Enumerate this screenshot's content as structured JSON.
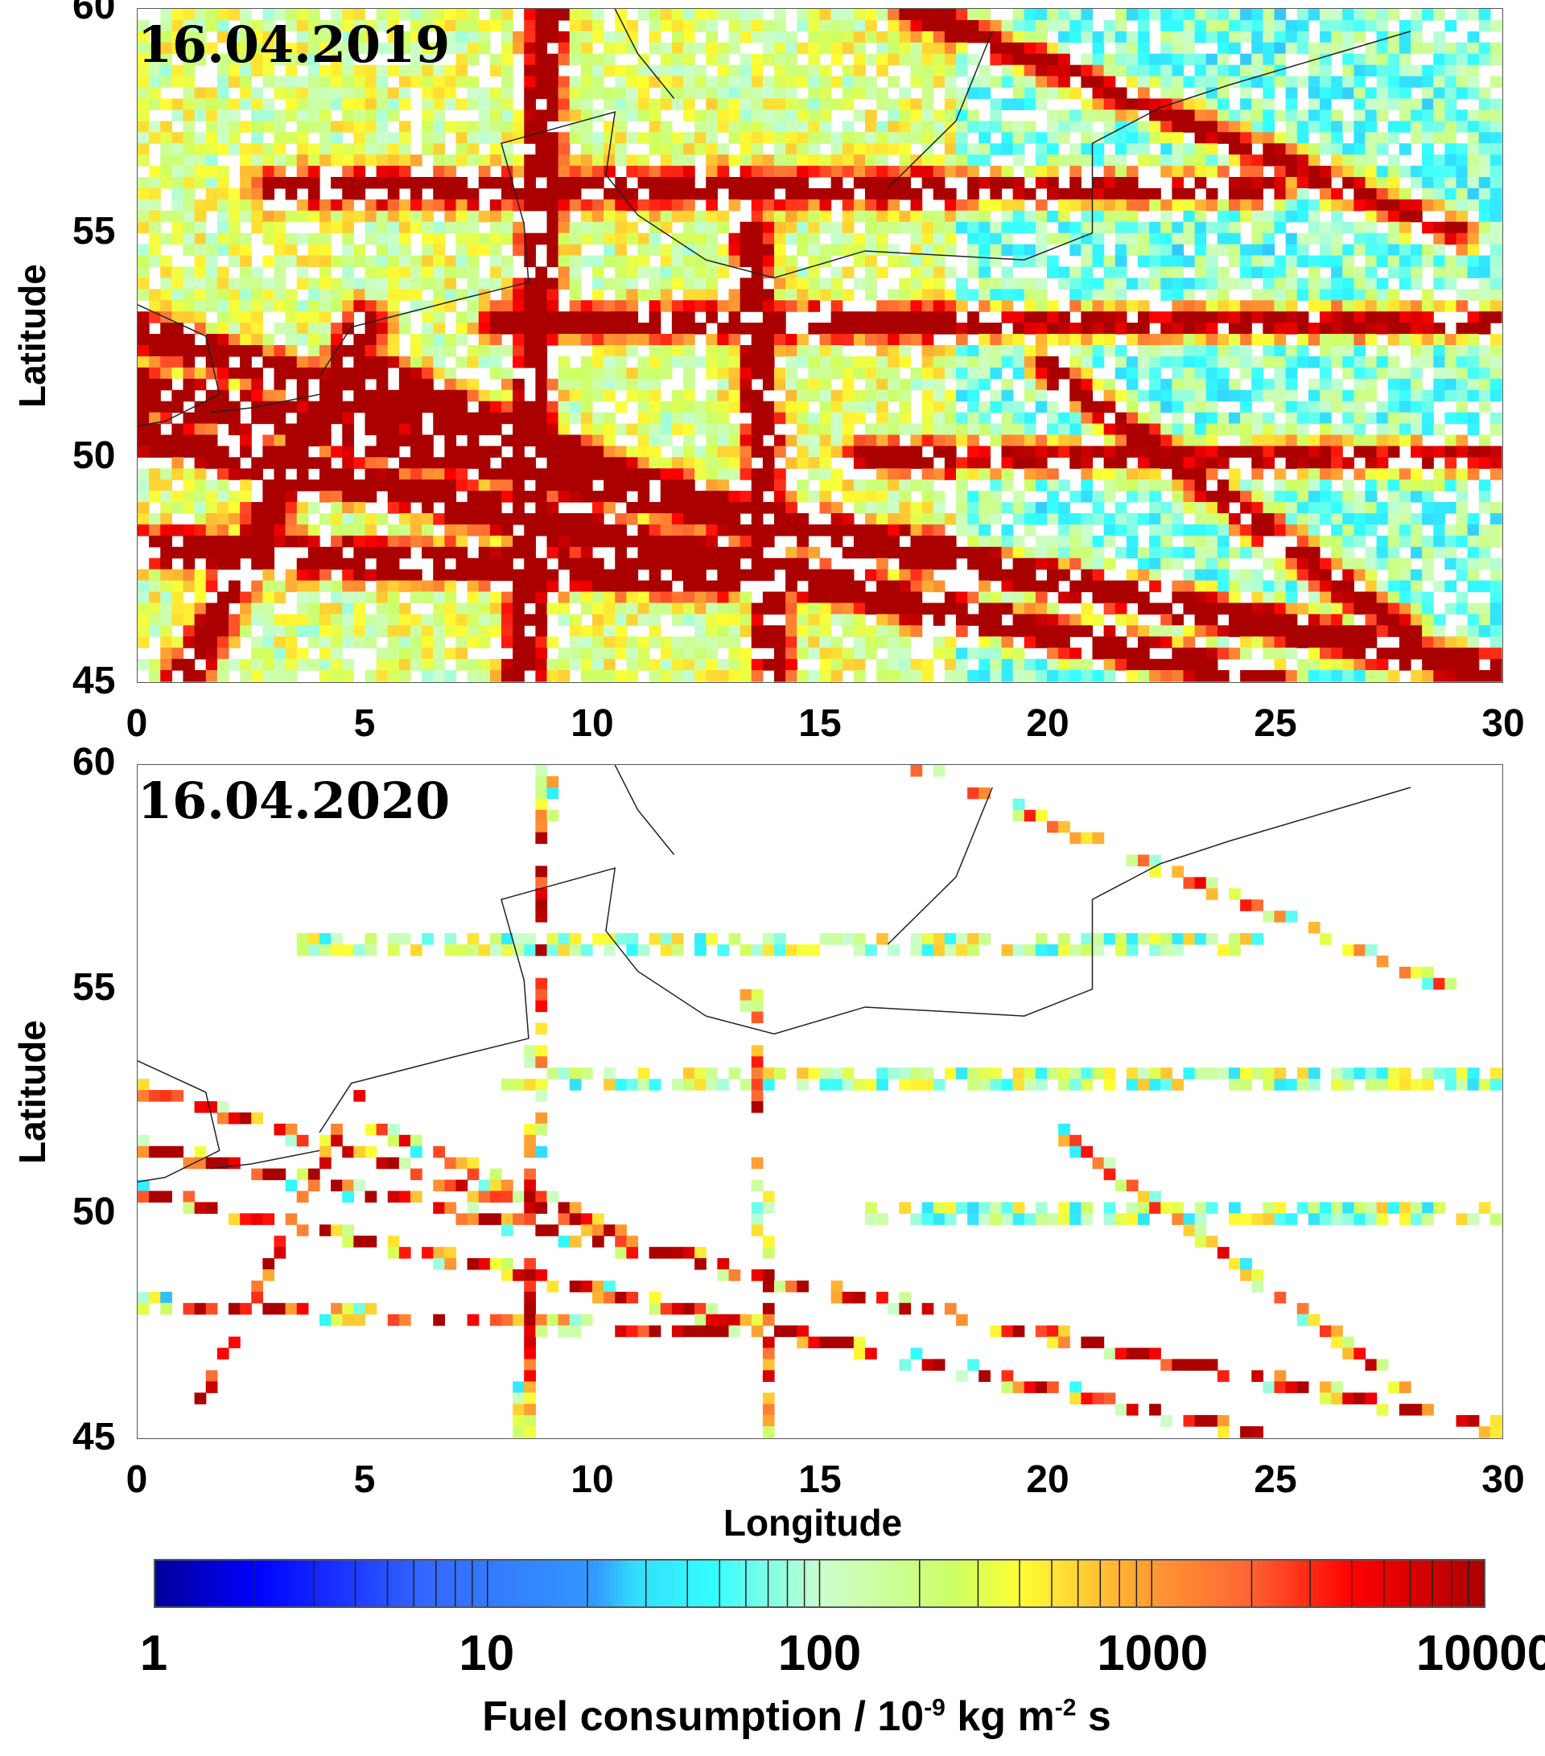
{
  "chart_data": {
    "type": "heatmap",
    "panels": [
      {
        "title": "16.04.2019",
        "xlim": [
          0,
          30
        ],
        "ylim": [
          45,
          60
        ],
        "density": "dense"
      },
      {
        "title": "16.04.2020",
        "xlim": [
          0,
          30
        ],
        "ylim": [
          45,
          60
        ],
        "density": "sparse"
      }
    ],
    "x_ticks": [
      "0",
      "5",
      "10",
      "15",
      "20",
      "25",
      "30"
    ],
    "y_ticks": [
      "45",
      "50",
      "55",
      "60"
    ],
    "xlabel": "Longitude",
    "ylabel": "Latitude",
    "colorbar": {
      "scale": "log",
      "range": [
        1,
        10000
      ],
      "ticks": [
        "1",
        "10",
        "100",
        "1000",
        "10000"
      ],
      "label_main": "Fuel consumption / 10",
      "label_exp1": "-9",
      "label_mid": " kg m",
      "label_exp2": "-2",
      "label_end": " s",
      "colors": [
        "#00009a",
        "#0000ff",
        "#3366ff",
        "#3399ff",
        "#33ddff",
        "#33ffff",
        "#ccffcc",
        "#ccff66",
        "#ffff33",
        "#ffcc33",
        "#ff9933",
        "#ff6633",
        "#ff0000",
        "#aa0000"
      ]
    }
  }
}
